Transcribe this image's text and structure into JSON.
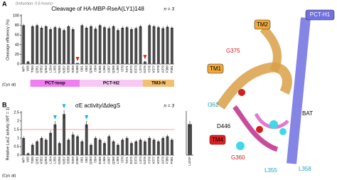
{
  "induction_note": "(Induction: 0.5 hours)",
  "panel_labels": [
    "A",
    "B",
    "C"
  ],
  "chart_data": [
    {
      "type": "bar",
      "title": "Cleavage of HA-MBP-RseA(LY1)148",
      "note": "n = 3",
      "ylabel": "Cleavage efficiency (%)",
      "xlabel": "(Cys at)",
      "color": "#4a4a4a",
      "categories": [
        "WT*",
        "V95",
        "T350",
        "Q351",
        "V352",
        "Q353",
        "L354",
        "L355",
        "N356",
        "N357",
        "S358",
        "S359",
        "G360",
        "I361",
        "I362",
        "Q363",
        "I364",
        "E365",
        "L366",
        "A367",
        "Q368",
        "L369",
        "I370",
        "T371",
        "E372",
        "E373",
        "L374",
        "G375",
        "Y376",
        "V377",
        "V378",
        "A379",
        "F380",
        "P381"
      ],
      "values": [
        80,
        5,
        78,
        80,
        75,
        78,
        72,
        76,
        74,
        70,
        78,
        72,
        2,
        80,
        75,
        78,
        73,
        80,
        76,
        74,
        78,
        70,
        75,
        76,
        72,
        74,
        78,
        5,
        80,
        78,
        76,
        74,
        77,
        75
      ],
      "errors": [
        3,
        2,
        3,
        3,
        4,
        3,
        4,
        3,
        3,
        4,
        3,
        4,
        1,
        3,
        3,
        3,
        4,
        3,
        3,
        4,
        3,
        4,
        3,
        3,
        4,
        3,
        3,
        2,
        3,
        3,
        3,
        4,
        3,
        3
      ],
      "ylim": [
        0,
        100
      ],
      "yticks": [
        0,
        20,
        40,
        60,
        80,
        100
      ],
      "groups": [
        {
          "label": "PCT-loop",
          "from": "T350",
          "to": "G360",
          "color": "#f07ef0"
        },
        {
          "label": "PCT-H2",
          "from": "I361",
          "to": "L374",
          "color": "#f8c8f4"
        },
        {
          "label": "TM3-N",
          "from": "G375",
          "to": "P381",
          "color": "#f4c070"
        }
      ],
      "arrows": [
        {
          "at": "G360",
          "color": "#e02020"
        },
        {
          "at": "G375",
          "color": "#e02020"
        }
      ]
    },
    {
      "type": "bar",
      "title": "σE activity/ΔdegS",
      "note": "n = 3",
      "ylabel": "Relative LacZ activity (WT = 1)",
      "xlabel": "(Cys at)",
      "color": "#4a4a4a",
      "categories": [
        "WT*",
        "V95",
        "T350",
        "Q351",
        "V352",
        "Q353",
        "L354",
        "L355",
        "N356",
        "N357",
        "S358",
        "S359",
        "G360",
        "I361",
        "I362",
        "Q363",
        "I364",
        "E365",
        "L366",
        "A367",
        "Q368",
        "L369",
        "I370",
        "T371",
        "E372",
        "E373",
        "L374",
        "G375",
        "Y376",
        "V377",
        "V378",
        "A379",
        "F380",
        "P381"
      ],
      "values": [
        1,
        0.1,
        0.6,
        0.8,
        1.0,
        0.9,
        1.3,
        1.8,
        0.7,
        2.4,
        0.9,
        1.2,
        1.1,
        0.8,
        1.8,
        0.6,
        1.0,
        0.9,
        0.7,
        1.1,
        0.8,
        0.6,
        0.9,
        1.0,
        0.7,
        0.8,
        0.9,
        0.8,
        1.0,
        0.9,
        0.8,
        1.0,
        1.1,
        0.9
      ],
      "errors": [
        0.1,
        0.05,
        0.1,
        0.1,
        0.1,
        0.1,
        0.15,
        0.2,
        0.1,
        0.25,
        0.1,
        0.15,
        0.1,
        0.1,
        0.2,
        0.1,
        0.1,
        0.1,
        0.1,
        0.1,
        0.1,
        0.1,
        0.1,
        0.1,
        0.1,
        0.1,
        0.1,
        0.1,
        0.1,
        0.1,
        0.1,
        0.1,
        0.1,
        0.1
      ],
      "ylim": [
        0,
        2.5
      ],
      "yticks": [
        0,
        0.5,
        1,
        1.5,
        2,
        2.5
      ],
      "reference_line": {
        "value": 1.5,
        "color": "#e05050"
      },
      "arrows": [
        {
          "at": "L355",
          "color": "#20b0e0"
        },
        {
          "at": "N357",
          "color": "#20b0e0"
        },
        {
          "at": "I362",
          "color": "#20b0e0"
        }
      ]
    },
    {
      "type": "bar",
      "color": "#4a4a4a",
      "categories": [
        "L151F"
      ],
      "values": [
        5.8
      ],
      "errors": [
        0.6
      ],
      "ylim": [
        0,
        8
      ]
    }
  ],
  "structure": {
    "labels": [
      "PCT-H1",
      "TM2",
      "TM1",
      "G375",
      "BAT",
      "I362",
      "D446",
      "TM4",
      "G360",
      "L355",
      "L358"
    ]
  }
}
